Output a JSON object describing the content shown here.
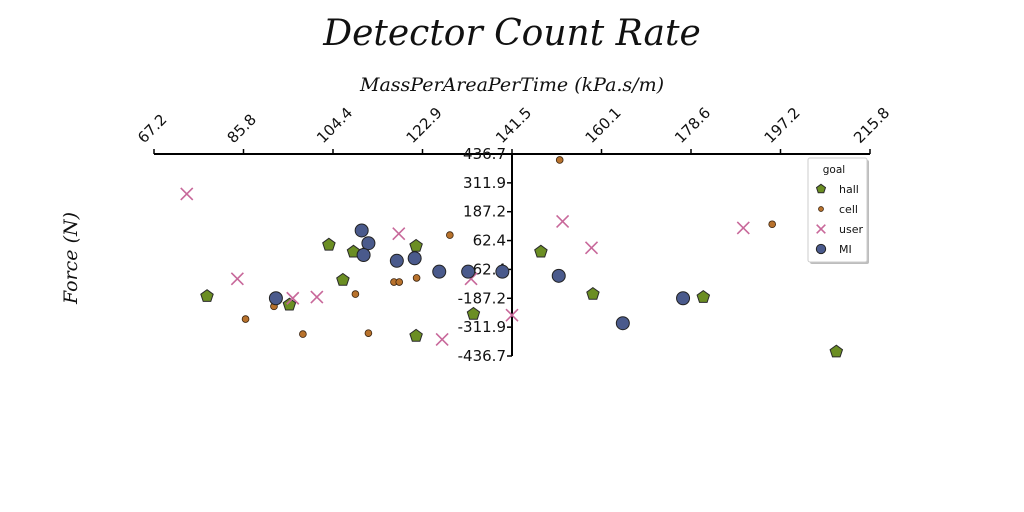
{
  "chart_data": {
    "type": "scatter",
    "title": "Detector Count Rate",
    "xlabel": "MassPerAreaPerTime (kPa.s/m)",
    "ylabel": "Force (N)",
    "xlim": [
      67.2,
      215.8
    ],
    "ylim": [
      -436.7,
      436.7
    ],
    "x_ticks": [
      "67.2",
      "85.8",
      "104.4",
      "122.9",
      "141.5",
      "160.1",
      "178.6",
      "197.2",
      "215.8"
    ],
    "y_ticks": [
      "436.7",
      "311.9",
      "187.2",
      "62.4",
      "-62.4",
      "-187.2",
      "-311.9",
      "-436.7"
    ],
    "legend": {
      "title": "goal",
      "placement": "top-right"
    },
    "grid": false,
    "series": [
      {
        "name": "hall",
        "marker": "pentagon",
        "color": "#6b8e23",
        "points": [
          [
            78.2,
            -178
          ],
          [
            103.5,
            44
          ],
          [
            106.4,
            -108
          ],
          [
            108.6,
            14
          ],
          [
            95.3,
            -215
          ],
          [
            121.6,
            39
          ],
          [
            121.6,
            -350
          ],
          [
            133.5,
            -255
          ],
          [
            147.5,
            14
          ],
          [
            158.3,
            -169
          ],
          [
            181.2,
            -182
          ],
          [
            208.8,
            -418
          ]
        ]
      },
      {
        "name": "cell",
        "marker": "dot",
        "color": "#b8722c",
        "points": [
          [
            86.2,
            -277
          ],
          [
            92.1,
            -222
          ],
          [
            98.1,
            -342
          ],
          [
            111.7,
            -338
          ],
          [
            109.0,
            -169
          ],
          [
            111.0,
            19
          ],
          [
            117.0,
            -117
          ],
          [
            118.1,
            -117
          ],
          [
            121.7,
            -99
          ],
          [
            128.6,
            86
          ],
          [
            151.4,
            411
          ],
          [
            195.5,
            133
          ]
        ]
      },
      {
        "name": "user",
        "marker": "x",
        "color": "#c8689a",
        "points": [
          [
            74.0,
            264
          ],
          [
            84.5,
            -103
          ],
          [
            96.0,
            -187
          ],
          [
            101.0,
            -182
          ],
          [
            118.0,
            92
          ],
          [
            127.0,
            -365
          ],
          [
            133.0,
            -103
          ],
          [
            141.5,
            -260
          ],
          [
            152.0,
            145
          ],
          [
            158.0,
            31
          ],
          [
            189.5,
            117
          ]
        ]
      },
      {
        "name": "MI",
        "marker": "circle",
        "color": "#4a5a8c",
        "points": [
          [
            92.5,
            -187
          ],
          [
            110.3,
            106
          ],
          [
            111.7,
            51
          ],
          [
            110.7,
            0
          ],
          [
            117.6,
            -25
          ],
          [
            121.3,
            -14
          ],
          [
            126.4,
            -72
          ],
          [
            132.4,
            -72
          ],
          [
            139.5,
            -72
          ],
          [
            151.2,
            -90
          ],
          [
            164.5,
            -295
          ],
          [
            177.0,
            -187
          ]
        ]
      }
    ]
  }
}
